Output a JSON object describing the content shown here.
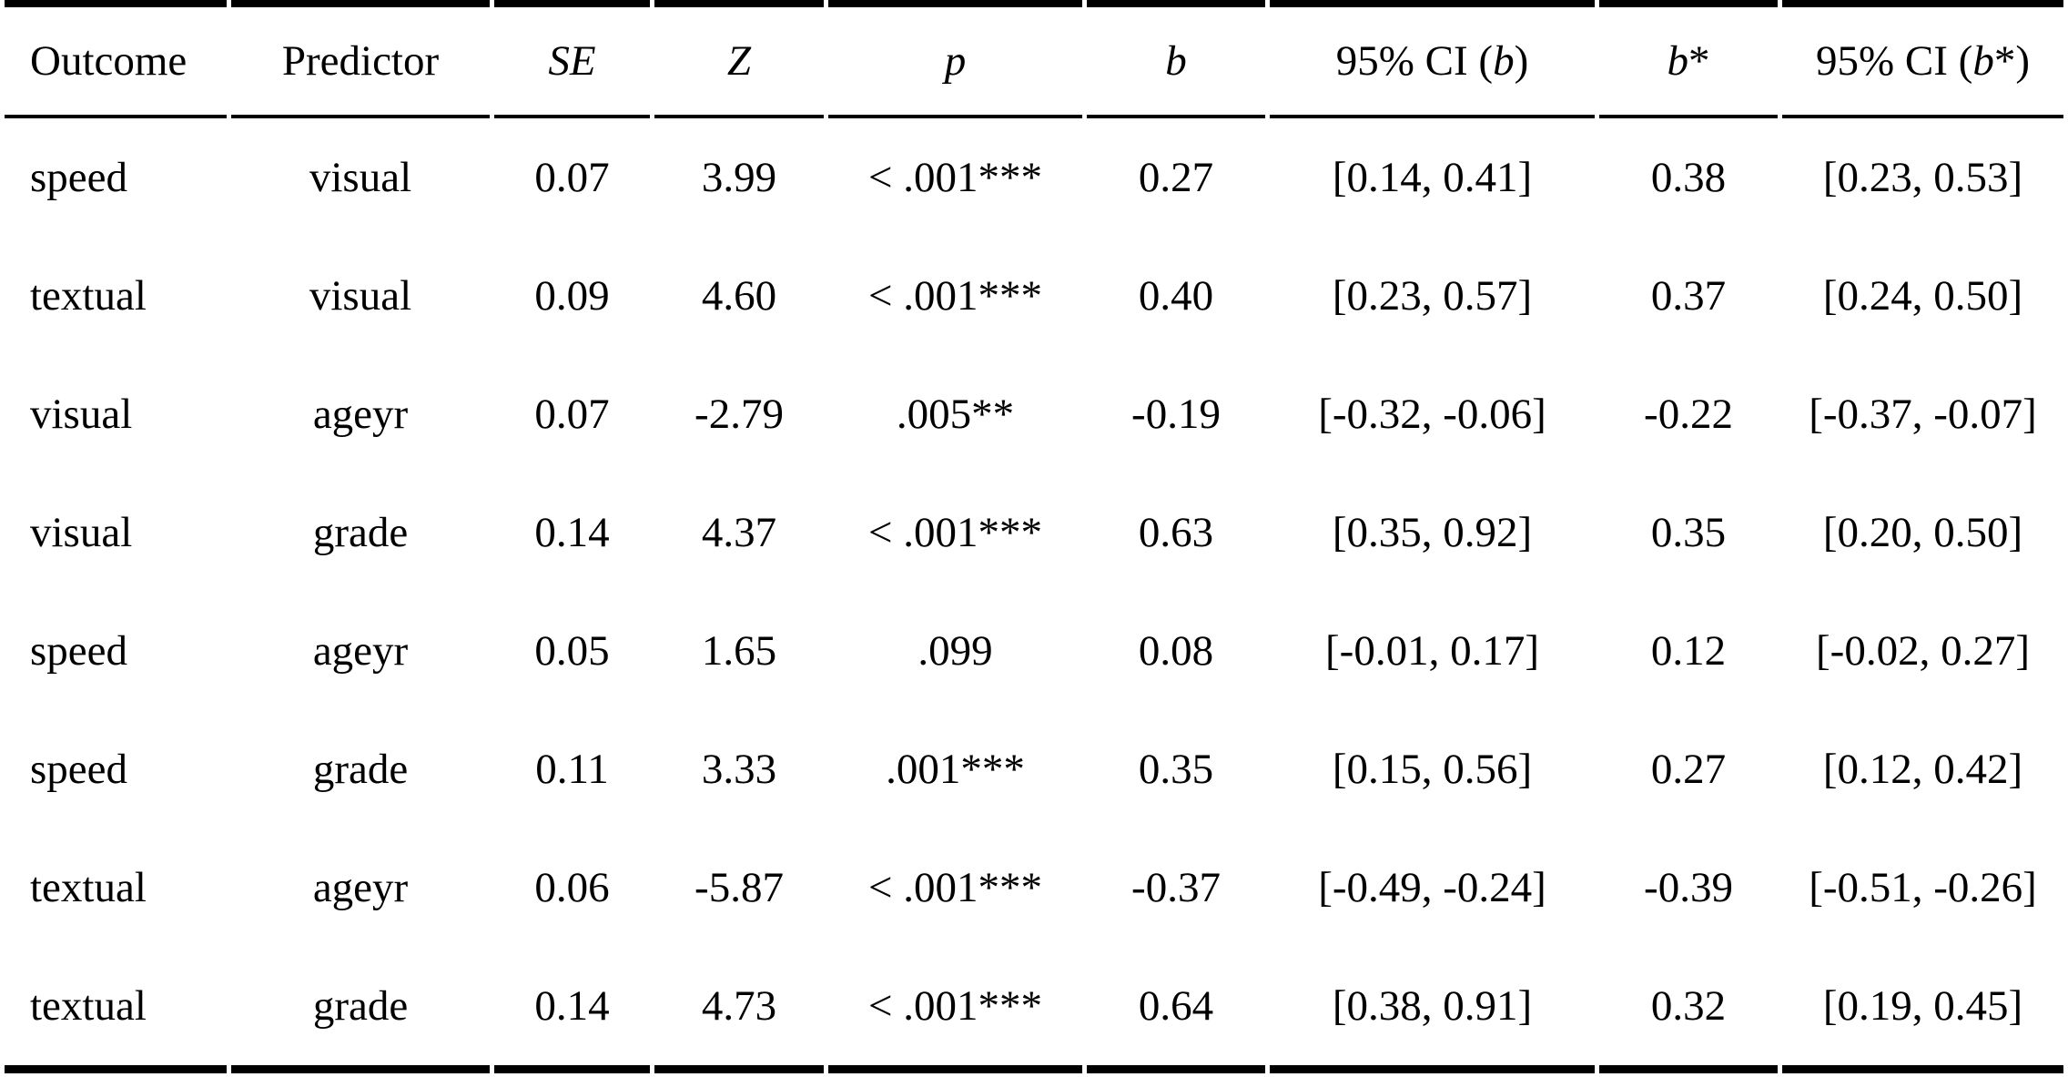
{
  "table": {
    "columns": [
      {
        "id": "outcome",
        "parts": [
          {
            "text": "Outcome",
            "italic": false
          }
        ]
      },
      {
        "id": "predictor",
        "parts": [
          {
            "text": "Predictor",
            "italic": false
          }
        ]
      },
      {
        "id": "se",
        "parts": [
          {
            "text": "SE",
            "italic": true
          }
        ]
      },
      {
        "id": "z",
        "parts": [
          {
            "text": "Z",
            "italic": true
          }
        ]
      },
      {
        "id": "p",
        "parts": [
          {
            "text": "p",
            "italic": true
          }
        ]
      },
      {
        "id": "b",
        "parts": [
          {
            "text": "b",
            "italic": true
          }
        ]
      },
      {
        "id": "ci-b",
        "parts": [
          {
            "text": "95% CI (",
            "italic": false
          },
          {
            "text": "b",
            "italic": true
          },
          {
            "text": ")",
            "italic": false
          }
        ]
      },
      {
        "id": "b-star",
        "parts": [
          {
            "text": "b",
            "italic": true
          },
          {
            "text": "*",
            "italic": false
          }
        ]
      },
      {
        "id": "ci-b-star",
        "parts": [
          {
            "text": "95% CI (",
            "italic": false
          },
          {
            "text": "b",
            "italic": true
          },
          {
            "text": "*)",
            "italic": false
          }
        ]
      }
    ],
    "rows": [
      [
        "speed",
        "visual",
        "0.07",
        "3.99",
        "< .001***",
        "0.27",
        "[0.14, 0.41]",
        "0.38",
        "[0.23, 0.53]"
      ],
      [
        "textual",
        "visual",
        "0.09",
        "4.60",
        "< .001***",
        "0.40",
        "[0.23, 0.57]",
        "0.37",
        "[0.24, 0.50]"
      ],
      [
        "visual",
        "ageyr",
        "0.07",
        "-2.79",
        ".005**",
        "-0.19",
        "[-0.32, -0.06]",
        "-0.22",
        "[-0.37, -0.07]"
      ],
      [
        "visual",
        "grade",
        "0.14",
        "4.37",
        "< .001***",
        "0.63",
        "[0.35, 0.92]",
        "0.35",
        "[0.20, 0.50]"
      ],
      [
        "speed",
        "ageyr",
        "0.05",
        "1.65",
        ".099",
        "0.08",
        "[-0.01, 0.17]",
        "0.12",
        "[-0.02, 0.27]"
      ],
      [
        "speed",
        "grade",
        "0.11",
        "3.33",
        ".001***",
        "0.35",
        "[0.15, 0.56]",
        "0.27",
        "[0.12, 0.42]"
      ],
      [
        "textual",
        "ageyr",
        "0.06",
        "-5.87",
        "< .001***",
        "-0.37",
        "[-0.49, -0.24]",
        "-0.39",
        "[-0.51, -0.26]"
      ],
      [
        "textual",
        "grade",
        "0.14",
        "4.73",
        "< .001***",
        "0.64",
        "[0.38, 0.91]",
        "0.32",
        "[0.19, 0.45]"
      ]
    ],
    "colors": {
      "text": "#000000",
      "background": "#ffffff",
      "rule": "#000000"
    }
  }
}
